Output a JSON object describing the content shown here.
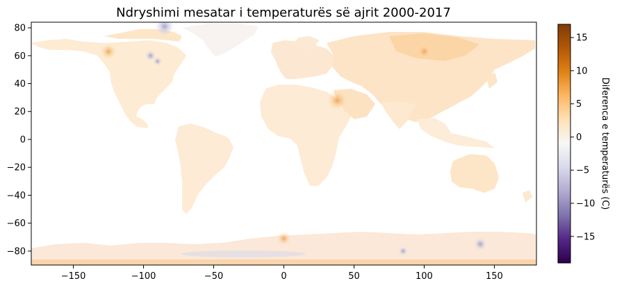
{
  "chart_data": {
    "type": "heatmap",
    "title": "Ndryshimi mesatar i temperaturës së ajrit 2000-2017",
    "xlim": [
      -180,
      180
    ],
    "ylim": [
      -90,
      84
    ],
    "x_ticks": [
      "−150",
      "−100",
      "−50",
      "0",
      "50",
      "100",
      "150"
    ],
    "x_tick_values": [
      -150,
      -100,
      -50,
      0,
      50,
      100,
      150
    ],
    "y_ticks": [
      "80",
      "60",
      "40",
      "20",
      "0",
      "−20",
      "−40",
      "−60",
      "−80"
    ],
    "y_tick_values": [
      80,
      60,
      40,
      20,
      0,
      -20,
      -40,
      -60,
      -80
    ],
    "colorbar": {
      "label": "Diferenca e temperaturës (C)",
      "range": [
        -19,
        17
      ],
      "ticks": [
        "15",
        "10",
        "5",
        "0",
        "−5",
        "−10",
        "−15"
      ],
      "tick_values": [
        15,
        10,
        5,
        0,
        -5,
        -10,
        -15
      ],
      "colormap": "PuOr_r",
      "colors": [
        "#2d004b",
        "#542788",
        "#8073ac",
        "#b2abd2",
        "#d8daeb",
        "#f7f7f7",
        "#fee0b6",
        "#fdb863",
        "#e08214",
        "#b35806",
        "#7f3b08"
      ]
    },
    "regions": [
      {
        "name": "North America",
        "typical_change": 2
      },
      {
        "name": "Greenland",
        "typical_change": 0
      },
      {
        "name": "South America",
        "typical_change": 1
      },
      {
        "name": "Europe",
        "typical_change": 1
      },
      {
        "name": "Africa",
        "typical_change": 1.5
      },
      {
        "name": "Asia",
        "typical_change": 2.5
      },
      {
        "name": "Siberia",
        "typical_change": 4
      },
      {
        "name": "Australia",
        "typical_change": 1.5
      },
      {
        "name": "Antarctica",
        "typical_change": 0.5
      }
    ],
    "notable_anomalies": [
      {
        "lon": -125,
        "lat": 63,
        "value": 6
      },
      {
        "lon": -95,
        "lat": 60,
        "value": -3
      },
      {
        "lon": -90,
        "lat": 56,
        "value": -2
      },
      {
        "lon": -85,
        "lat": 81,
        "value": -8
      },
      {
        "lon": 100,
        "lat": 63,
        "value": 5
      },
      {
        "lon": 38,
        "lat": 28,
        "value": 9
      },
      {
        "lon": 0,
        "lat": -71,
        "value": 5
      },
      {
        "lon": 140,
        "lat": -75,
        "value": -4
      },
      {
        "lon": 85,
        "lat": -80,
        "value": -2
      }
    ]
  }
}
